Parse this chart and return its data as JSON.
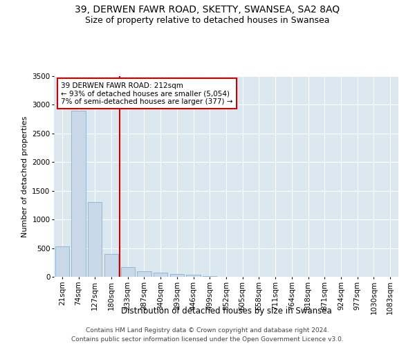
{
  "title1": "39, DERWEN FAWR ROAD, SKETTY, SWANSEA, SA2 8AQ",
  "title2": "Size of property relative to detached houses in Swansea",
  "xlabel": "Distribution of detached houses by size in Swansea",
  "ylabel": "Number of detached properties",
  "footnote1": "Contains HM Land Registry data © Crown copyright and database right 2024.",
  "footnote2": "Contains public sector information licensed under the Open Government Licence v3.0.",
  "annotation_line1": "39 DERWEN FAWR ROAD: 212sqm",
  "annotation_line2": "← 93% of detached houses are smaller (5,054)",
  "annotation_line3": "7% of semi-detached houses are larger (377) →",
  "bar_color": "#c8d8e8",
  "bar_edge_color": "#7aa8c8",
  "vline_color": "#cc0000",
  "annotation_box_edgecolor": "#cc0000",
  "bg_color": "#dce8f0",
  "categories": [
    "21sqm",
    "74sqm",
    "127sqm",
    "180sqm",
    "233sqm",
    "287sqm",
    "340sqm",
    "393sqm",
    "446sqm",
    "499sqm",
    "552sqm",
    "605sqm",
    "658sqm",
    "711sqm",
    "764sqm",
    "818sqm",
    "871sqm",
    "924sqm",
    "977sqm",
    "1030sqm",
    "1083sqm"
  ],
  "values": [
    530,
    2900,
    1300,
    400,
    170,
    100,
    70,
    50,
    40,
    15,
    5,
    3,
    2,
    1,
    1,
    0,
    0,
    0,
    0,
    0,
    0
  ],
  "ylim": [
    0,
    3500
  ],
  "yticks": [
    0,
    500,
    1000,
    1500,
    2000,
    2500,
    3000,
    3500
  ],
  "vline_bar_index": 3.5,
  "title1_fontsize": 10,
  "title2_fontsize": 9,
  "xlabel_fontsize": 8.5,
  "ylabel_fontsize": 8,
  "tick_fontsize": 7.5,
  "annot_fontsize": 7.5,
  "footnote_fontsize": 6.5
}
